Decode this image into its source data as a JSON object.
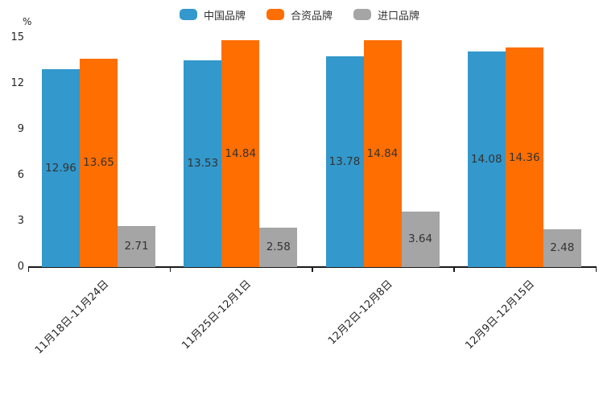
{
  "chart_data": {
    "type": "bar",
    "title": "",
    "ylabel": "%",
    "xlabel": "",
    "categories": [
      "11月18日-11月24日",
      "11月25日-12月1日",
      "12月2日-12月8日",
      "12月9日-12月15日"
    ],
    "series": [
      {
        "name": "中国品牌",
        "color": "#3398CC",
        "values": [
          12.96,
          13.53,
          13.78,
          14.08
        ]
      },
      {
        "name": "合资品牌",
        "color": "#FF6E00",
        "values": [
          13.65,
          14.84,
          14.84,
          14.36
        ]
      },
      {
        "name": "进口品牌",
        "color": "#A5A5A5",
        "values": [
          2.71,
          2.58,
          3.64,
          2.48
        ]
      }
    ],
    "ylim": [
      0,
      15
    ],
    "yticks": [
      0,
      3,
      6,
      9,
      12,
      15
    ],
    "grid": false,
    "legend_position": "top-center",
    "value_labels": "inside-center",
    "x_label_rotation_deg": 45
  },
  "colors": {
    "axis": "#1a1a1a",
    "tick_text": "#262626",
    "value_text": "#333333",
    "background": "#ffffff"
  }
}
